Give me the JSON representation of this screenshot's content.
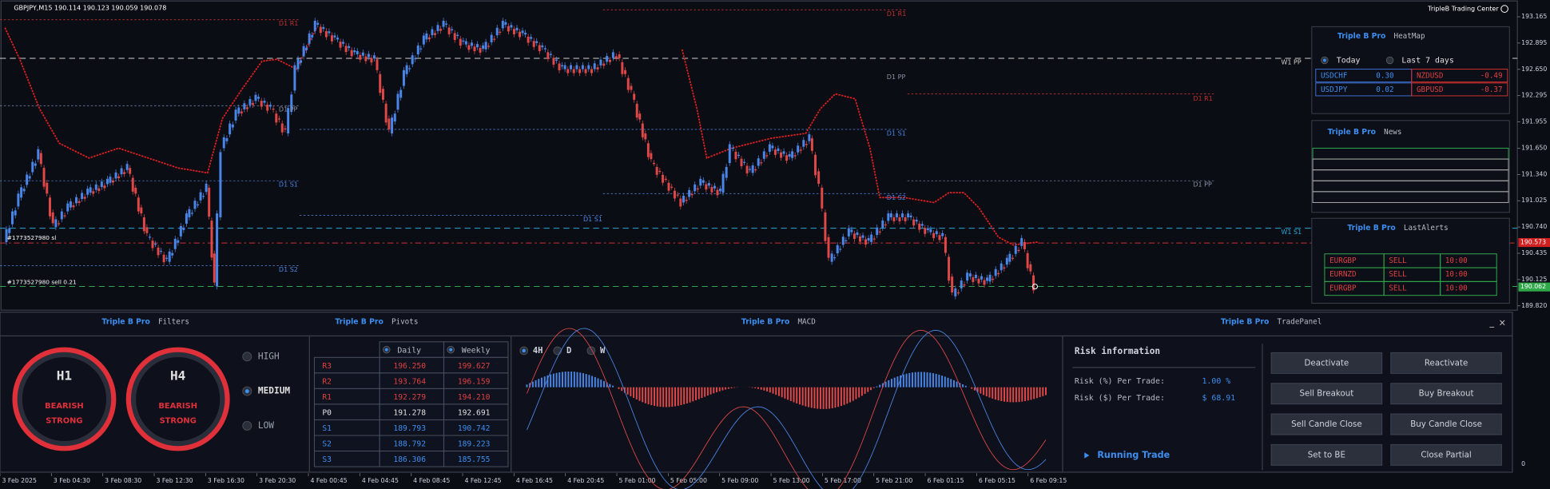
{
  "header": {
    "symbol_quote": "GBPJPY,M15  190.114 190.123 190.059 190.078",
    "brand": "TripleB Trading Center"
  },
  "price_axis": [
    "193.165",
    "192.895",
    "192.650",
    "192.295",
    "191.955",
    "191.650",
    "191.340",
    "191.025",
    "190.740",
    "190.435",
    "190.125",
    "189.820"
  ],
  "price_markers": {
    "red": "190.573",
    "green": "190.062"
  },
  "time_axis": [
    "3 Feb 2025",
    "3 Feb 04:30",
    "3 Feb 08:30",
    "3 Feb 12:30",
    "3 Feb 16:30",
    "3 Feb 20:30",
    "4 Feb 00:45",
    "4 Feb 04:45",
    "4 Feb 08:45",
    "4 Feb 12:45",
    "4 Feb 16:45",
    "4 Feb 20:45",
    "5 Feb 01:00",
    "5 Feb 05:00",
    "5 Feb 09:00",
    "5 Feb 13:00",
    "5 Feb 17:00",
    "5 Feb 21:00",
    "6 Feb 01:15",
    "6 Feb 05:15",
    "6 Feb 09:15"
  ],
  "level_labels": [
    "D1 R1",
    "D1 PP",
    "D1 S1",
    "D1 S2",
    "D1 R1",
    "D1 PP",
    "D1 S1",
    "D1 S2",
    "D1 S1",
    "D1 R1",
    "D1 PP",
    "W1 PP",
    "W1 S1"
  ],
  "orders": [
    "#1773527980 sl",
    "#1773527980 sell 0.21"
  ],
  "heatmap": {
    "brand": "Triple B Pro",
    "title": "HeatMap",
    "options": [
      "Today",
      "Last 7 days"
    ],
    "rows": [
      [
        "USDCHF",
        "0.30",
        "NZDUSD",
        "-0.49"
      ],
      [
        "USDJPY",
        "0.02",
        "GBPUSD",
        "-0.37"
      ]
    ]
  },
  "news": {
    "brand": "Triple B Pro",
    "title": "News"
  },
  "last_alerts": {
    "brand": "Triple B Pro",
    "title": "LastAlerts",
    "rows": [
      [
        "EURGBP",
        "SELL",
        "10:00"
      ],
      [
        "EURNZD",
        "SELL",
        "10:00"
      ],
      [
        "EURGBP",
        "SELL",
        "10:00"
      ]
    ]
  },
  "filters": {
    "brand": "Triple B Pro",
    "title": "Filters",
    "gauges": [
      {
        "timeframe": "H1",
        "status": [
          "BEARISH",
          "STRONG"
        ]
      },
      {
        "timeframe": "H4",
        "status": [
          "BEARISH",
          "STRONG"
        ]
      }
    ],
    "levels": [
      "HIGH",
      "MEDIUM",
      "LOW"
    ]
  },
  "pivots": {
    "brand": "Triple B Pro",
    "title": "Pivots",
    "columns": [
      "Daily",
      "Weekly"
    ],
    "rows": [
      [
        "R3",
        "196.250",
        "199.627"
      ],
      [
        "R2",
        "193.764",
        "196.159"
      ],
      [
        "R1",
        "192.279",
        "194.210"
      ],
      [
        "P0",
        "191.278",
        "192.691"
      ],
      [
        "S1",
        "189.793",
        "190.742"
      ],
      [
        "S2",
        "188.792",
        "189.223"
      ],
      [
        "S3",
        "186.306",
        "185.755"
      ]
    ]
  },
  "macd": {
    "brand": "Triple B Pro",
    "title": "MACD",
    "tabs": [
      "4H",
      "D",
      "W"
    ]
  },
  "trade_panel": {
    "brand": "Triple B Pro",
    "title": "TradePanel",
    "risk_title": "Risk information",
    "risk_rows": [
      [
        "Risk (%) Per Trade:",
        "1.00 %"
      ],
      [
        "Risk ($) Per Trade:",
        "$ 68.91"
      ]
    ],
    "running_trade": "Running Trade",
    "buttons": [
      "Deactivate",
      "Reactivate",
      "Sell Breakout",
      "Buy Breakout",
      "Sell Candle Close",
      "Buy Candle Close",
      "Set to BE",
      "Close Partial"
    ],
    "axis_zero": "0"
  }
}
